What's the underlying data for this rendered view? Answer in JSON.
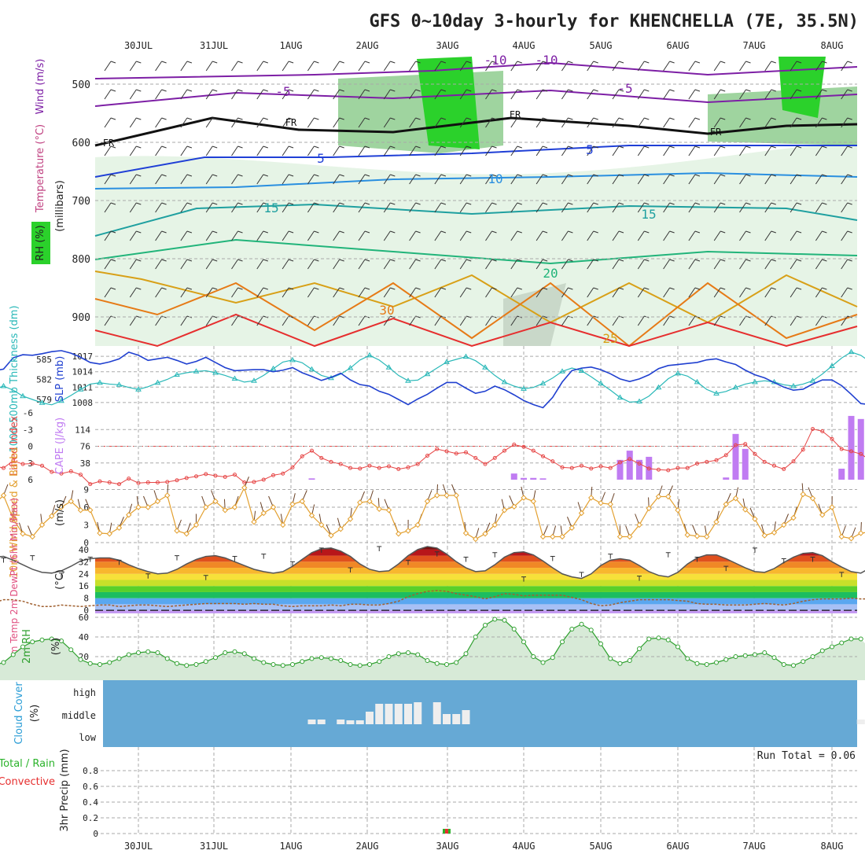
{
  "title": "GFS 0~10day 3-hourly for KHENCHELLA (7E, 35.5N)",
  "days": [
    "30JUL",
    "31JUL",
    "1AUG",
    "2AUG",
    "3AUG",
    "4AUG",
    "5AUG",
    "6AUG",
    "7AUG",
    "8AUG"
  ],
  "colors": {
    "rh_green": "#2bd12b",
    "temp_warm": "#e8702a",
    "temp_cool": "#2a9dd6",
    "cape": "#c07cf2",
    "lifted": "#e64545",
    "slp": "#2040d0",
    "thickness": "#29b8b8",
    "wind10": "#e3a030",
    "rh2m": "#2fa02f",
    "cloud_bg": "#66a9d5",
    "cloud_fill": "#eeeeee"
  },
  "chart_data": [
    {
      "type": "contour",
      "panel": "upper_air",
      "ylabel_parts": [
        "RH (%)",
        "Temperature (°C)",
        "Wind (m/s)",
        "(millibars)"
      ],
      "y_ticks": [
        "500",
        "600",
        "700",
        "800",
        "900"
      ],
      "contour_labels": [
        "-10",
        "-10",
        "-5",
        "-5",
        "FR",
        "FR",
        "FR",
        "FR",
        "5",
        "5",
        "10",
        "15",
        "15",
        "20",
        "30",
        "25"
      ]
    },
    {
      "type": "line",
      "panel": "slp_thickness",
      "ylabel_left": "1000-500mb Thickness (dm)",
      "ylabel_right": "SLP (mb)",
      "ticks_left": [
        "585",
        "582",
        "579"
      ],
      "ticks_right": [
        "1017",
        "1014",
        "1011",
        "1008"
      ],
      "thickness_range": [
        577,
        587
      ],
      "slp_range": [
        1006,
        1019
      ],
      "thickness": [
        580,
        580.5,
        581,
        580.4,
        579.5,
        579,
        578.5,
        578.2,
        578.8,
        579.6,
        580.5,
        581.3,
        581.5,
        581.3,
        581.2,
        580.8,
        580.5,
        580.9,
        581.5,
        582,
        582.7,
        583,
        583.2,
        583.3,
        583,
        582.6,
        582.1,
        581.6,
        581.8,
        582.6,
        583.6,
        584.6,
        584.9,
        584.5,
        583.5,
        582.6,
        582.2,
        582.8,
        583.7,
        584.9,
        585.6,
        584.9,
        583.8,
        582.6,
        581.8,
        581.9,
        582.8,
        583.7,
        584.6,
        585,
        585.4,
        584.8,
        583.8,
        582.6,
        581.6,
        581,
        580.6,
        580.8,
        581.4,
        582.2,
        583.2,
        583.7,
        583.3,
        582.4,
        581.4,
        580.4,
        579.3,
        578.6,
        578.7,
        579.5,
        580.8,
        582.1,
        582.9,
        582.5,
        581.6,
        580.5,
        579.9,
        580.2,
        580.8,
        581.3,
        581.6,
        581.8,
        581.6,
        581.2,
        581,
        581.3,
        581.8,
        582.8,
        584,
        585.2,
        586.1,
        585.6,
        584.6,
        583,
        582,
        581.2
      ],
      "slp": [
        1014.5,
        1014.2,
        1014.5,
        1016.7,
        1017.3,
        1017.2,
        1017.5,
        1017.9,
        1018.1,
        1017.6,
        1016.8,
        1015.8,
        1015.5,
        1015.9,
        1016.5,
        1017.8,
        1017.2,
        1016.2,
        1016.5,
        1016.8,
        1016.2,
        1015.5,
        1016,
        1016.8,
        1015.8,
        1014.8,
        1014.2,
        1014.3,
        1014.4,
        1014.4,
        1014,
        1014.3,
        1014.8,
        1013.8,
        1013.1,
        1012.3,
        1012.9,
        1013.7,
        1012.4,
        1011.5,
        1011.2,
        1010.2,
        1009.6,
        1008.6,
        1007.6,
        1008.7,
        1009.6,
        1010.8,
        1011.9,
        1011.9,
        1010.8,
        1009.8,
        1010.2,
        1011.2,
        1010.5,
        1009.5,
        1008.4,
        1007.6,
        1007,
        1009,
        1012,
        1014.2,
        1014.7,
        1014.9,
        1014.4,
        1013.6,
        1012.6,
        1012.1,
        1012.6,
        1013.4,
        1014.6,
        1015.2,
        1015.4,
        1015.6,
        1015.8,
        1016.3,
        1016.5,
        1015.9,
        1015.4,
        1014.3,
        1013.4,
        1012.8,
        1011.9,
        1011,
        1010.4,
        1010.6,
        1011.6,
        1012.4,
        1012.4,
        1011.3,
        1009.6,
        1007.8,
        1007.6,
        1009,
        1010.4,
        1012.2
      ]
    },
    {
      "type": "bar",
      "panel": "cape_lifted",
      "ylabel_left": "Lifted Index",
      "ylabel_right": "CAPE (J/kg)",
      "ticks_left": [
        "-6",
        "-3",
        "0",
        "3",
        "6"
      ],
      "ticks_right": [
        "114",
        "76",
        "38"
      ],
      "cape_max": 152,
      "lifted_range": [
        -6,
        6
      ],
      "cape": [
        0,
        0,
        0,
        0,
        0,
        0,
        0,
        0,
        0,
        0,
        0,
        0,
        0,
        0,
        0,
        0,
        0,
        0,
        0,
        0,
        0,
        0,
        0,
        0,
        0,
        0,
        0,
        0,
        0,
        0,
        0,
        0,
        0,
        0,
        3,
        0,
        0,
        0,
        0,
        0,
        0,
        0,
        0,
        0,
        0,
        0,
        0,
        0,
        0,
        0,
        0,
        0,
        0,
        0,
        0,
        0,
        0,
        0,
        0,
        0,
        0,
        0,
        0,
        0,
        0,
        0,
        0,
        0,
        0,
        0,
        0,
        0,
        0,
        0,
        0,
        0,
        0,
        5,
        104,
        70,
        0,
        0,
        0,
        0,
        0,
        0,
        0,
        0,
        0,
        25,
        145,
        138,
        125,
        94,
        54,
        10,
        0,
        0
      ],
      "cape_extra": {
        "55": 14,
        "56": 4,
        "57": 4,
        "58": 3,
        "66": 45,
        "67": 66,
        "68": 45,
        "69": 52
      },
      "lifted": [
        3.2,
        3.5,
        3.9,
        2.6,
        3.2,
        3.1,
        3.5,
        4.6,
        4.9,
        4.5,
        5.1,
        6.8,
        6.3,
        6.5,
        6.8,
        5.8,
        6.6,
        6.5,
        6.5,
        6.4,
        6.1,
        5.7,
        5.4,
        5,
        5.3,
        5.5,
        5.1,
        6.5,
        6.4,
        6,
        5.2,
        4.9,
        3.8,
        1.8,
        0.8,
        2.1,
        2.8,
        3.2,
        3.9,
        4,
        3.5,
        3.9,
        3.6,
        4.1,
        3.8,
        3.2,
        1.7,
        0.5,
        0.9,
        1.3,
        1.1,
        2.1,
        3.2,
        2.1,
        0.8,
        -0.3,
        0.1,
        0.8,
        1.8,
        2.7,
        3.8,
        3.9,
        3.5,
        4,
        3.6,
        3.9,
        2.9,
        2.3,
        3.1,
        4,
        4.2,
        4.3,
        3.9,
        3.9,
        3.1,
        2.8,
        2.5,
        1.6,
        -0.2,
        -0.4,
        1.4,
        2.8,
        3.5,
        4.1,
        2.7,
        0.6,
        -3.1,
        -2.7,
        -1.3,
        0.5,
        0.9,
        1.4,
        2.5,
        3.4,
        3.4,
        3.1
      ]
    },
    {
      "type": "line",
      "panel": "wind10m",
      "ylabel": "10m Wind Speed & Barbs",
      "unit": "(m/s)",
      "ticks": [
        "9",
        "6",
        "3",
        "0"
      ],
      "ylim": [
        0,
        10
      ],
      "values": [
        5,
        6.5,
        8,
        4,
        1.5,
        1,
        3,
        4.5,
        6,
        7,
        5.5,
        5.5,
        1.6,
        1.5,
        2.5,
        4.7,
        6,
        6,
        7,
        8,
        2,
        1.5,
        3,
        6,
        7,
        5.5,
        6,
        9.3,
        3.5,
        5,
        6,
        3,
        6.5,
        7,
        4.6,
        3,
        1.2,
        2.3,
        4,
        6.8,
        7,
        5.7,
        5.5,
        1.5,
        2,
        3,
        7,
        8,
        8,
        8,
        1.6,
        0.6,
        1.5,
        3,
        5.5,
        6.1,
        7.6,
        7,
        1,
        1,
        1,
        2.5,
        5,
        7.6,
        6.7,
        6.5,
        1,
        1,
        3,
        5.8,
        7.8,
        7.8,
        5.5,
        1.3,
        1.1,
        1,
        3.5,
        6.5,
        7.5,
        5.6,
        4,
        1.2,
        1.7,
        3,
        4.2,
        8.2,
        7.5,
        4.7,
        6,
        1,
        0.7,
        1.6,
        1.8,
        2.2,
        2.4
      ]
    },
    {
      "type": "area",
      "panel": "temp2m",
      "ylabel": "2m Temp 2m DewPt (6hr Min/Max)",
      "unit": "(°C)",
      "ticks": [
        "40",
        "32",
        "24",
        "16",
        "8",
        "0"
      ],
      "ylim": [
        -2,
        42
      ],
      "temp": [
        33.5,
        35,
        35.5,
        33,
        30,
        27,
        25,
        24.5,
        26,
        29,
        32.5,
        34,
        34.5,
        34.5,
        33,
        30,
        27.5,
        25.5,
        24,
        24.5,
        27,
        30.5,
        33.5,
        35.5,
        36,
        34.5,
        32,
        29.5,
        27,
        25.5,
        24.5,
        25.5,
        29,
        33.5,
        38,
        40.5,
        41,
        39,
        35.5,
        30.5,
        27,
        25.5,
        26,
        30.5,
        36,
        40,
        42,
        41,
        37,
        32,
        28,
        25.5,
        26,
        30,
        35,
        38,
        38.5,
        36.5,
        32.5,
        28,
        24,
        22,
        21,
        24,
        29.5,
        33,
        34,
        33,
        29.5,
        25.5,
        23,
        22,
        25,
        30.5,
        34.5,
        36.5,
        36.5,
        34,
        31,
        28,
        25.5,
        25,
        27.5,
        31.5,
        35,
        37.5,
        38,
        36,
        32,
        28.5,
        25.5,
        24.5,
        28,
        33,
        37.5,
        40.5,
        41,
        39.5,
        35,
        30,
        26,
        24.5,
        25
      ],
      "dewpt": [
        3,
        5,
        7,
        7,
        6,
        4,
        2.5,
        2.5,
        3.5,
        3,
        2.5,
        3,
        3.5,
        3.5,
        2.5,
        3,
        3.5,
        3.5,
        3,
        2.5,
        3,
        3.5,
        4,
        4.5,
        4.5,
        4.5,
        4.5,
        4,
        4.5,
        4,
        4,
        3,
        2.5,
        3,
        3,
        3,
        3.5,
        3,
        4,
        4,
        3.5,
        3.5,
        4.5,
        6,
        9,
        11,
        12.5,
        13,
        12.5,
        11,
        10,
        9,
        7.5,
        9,
        11,
        10.5,
        9.5,
        10,
        10,
        10,
        10,
        8.5,
        7,
        4.5,
        3,
        3.5,
        5,
        6,
        7,
        7,
        7,
        7,
        6.5,
        6,
        4.5,
        4,
        4,
        3.5,
        3.5,
        3.5,
        4,
        4.5,
        4,
        3.5,
        4.5,
        6,
        7,
        7.5,
        7.5,
        7.5,
        8,
        7.5,
        7.5,
        7,
        7
      ],
      "minmax": [
        34.5,
        36,
        24.5,
        35,
        33,
        24,
        36,
        23,
        35.5,
        37,
        32,
        41,
        28,
        42,
        33,
        38.5,
        35,
        38,
        22,
        35.5,
        25,
        37,
        22.5,
        38,
        35,
        29,
        41,
        34,
        35,
        25
      ]
    },
    {
      "type": "area",
      "panel": "rh2m",
      "ylabel": "2m RH",
      "unit": "(%)",
      "ticks": [
        "60",
        "40",
        "20"
      ],
      "ylim": [
        0,
        60
      ],
      "values": [
        13,
        11,
        14,
        22,
        30,
        35,
        37,
        38,
        36,
        27,
        17,
        13,
        12,
        14,
        18,
        22,
        24,
        25,
        24,
        18,
        13,
        11,
        12,
        15,
        19,
        24,
        25,
        23,
        18,
        14,
        12,
        11,
        12,
        15,
        18,
        19,
        18,
        16,
        12,
        11,
        12,
        15,
        20,
        23,
        24,
        22,
        16,
        13,
        12,
        14,
        23,
        40,
        52,
        58,
        57,
        48,
        35,
        20,
        14,
        19,
        35,
        48,
        53,
        47,
        33,
        18,
        13,
        16,
        28,
        38,
        39,
        37,
        30,
        18,
        13,
        12,
        14,
        17,
        20,
        21,
        22,
        24,
        19,
        12,
        11,
        15,
        20,
        26,
        30,
        34,
        38,
        38
      ]
    },
    {
      "type": "bar",
      "panel": "cloud_cover",
      "ylabel": "Cloud Cover",
      "unit": "(%)",
      "ticks": [
        "high",
        "middle",
        "low"
      ],
      "middle": [
        0,
        0,
        0,
        0,
        0,
        0,
        0,
        0,
        0,
        0,
        0,
        0,
        0,
        0,
        0,
        0,
        0,
        0,
        0,
        0,
        0,
        0,
        0,
        0,
        0,
        0,
        0,
        0,
        0,
        0,
        0,
        0,
        0,
        0,
        6,
        6,
        0,
        6,
        5,
        5,
        16,
        26,
        26,
        26,
        26,
        28,
        0,
        28,
        13,
        13,
        18,
        0,
        0,
        0,
        0,
        0,
        0,
        0,
        0,
        0,
        0,
        0,
        0,
        0,
        0,
        0,
        0,
        0,
        0,
        0,
        0,
        0,
        0,
        0,
        0,
        0,
        0,
        0,
        0,
        0,
        0,
        0,
        0,
        0,
        0,
        0,
        0,
        0,
        0,
        0,
        0,
        6,
        18,
        14,
        0,
        14
      ],
      "high": [
        0,
        0,
        0,
        0,
        0,
        0,
        0,
        0,
        0,
        0,
        0,
        0,
        0,
        0,
        0,
        0,
        0,
        0,
        0,
        0,
        0,
        0,
        0,
        0,
        0,
        0,
        0,
        0,
        0,
        0,
        0,
        0,
        0,
        0,
        0,
        0,
        0,
        0,
        0,
        0,
        0,
        0,
        0,
        0,
        0,
        0,
        0,
        0,
        0,
        0,
        0,
        0,
        0,
        0,
        0,
        0,
        0,
        0,
        0,
        0,
        0,
        0,
        0,
        0,
        0,
        0,
        0,
        0,
        0,
        0,
        0,
        0,
        0,
        0,
        0,
        0,
        0,
        0,
        0,
        0,
        0,
        0,
        0,
        0,
        0,
        0,
        0,
        0,
        0,
        0,
        0,
        0,
        0,
        0,
        6,
        0
      ]
    },
    {
      "type": "bar",
      "panel": "precip",
      "ylabel_parts": [
        "Total / Rain",
        "Convective",
        "3hr Precip (mm)"
      ],
      "ticks": [
        "0.8",
        "0.6",
        "0.4",
        "0.2",
        "0"
      ],
      "ylim": [
        0,
        1
      ],
      "run_total": "Run Total = 0.06",
      "total_index": 48,
      "total_value": 0.06
    }
  ]
}
